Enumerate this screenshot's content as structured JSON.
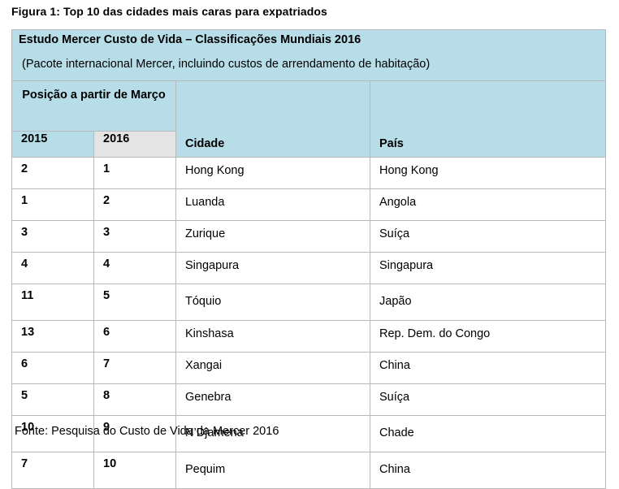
{
  "caption": "Figura 1: Top 10 das cidades mais caras para expatriados",
  "table": {
    "title": "Estudo Mercer Custo de Vida – Classificações Mundiais 2016",
    "subtitle": "(Pacote internacional Mercer, incluindo custos de arrendamento de habitação)",
    "position_header": "Posição a partir de Março",
    "columns": {
      "y2015": "2015",
      "y2016": "2016",
      "city": "Cidade",
      "country": "País"
    },
    "rows": [
      {
        "r2015": "2",
        "r2016": "1",
        "city": "Hong Kong",
        "country": "Hong Kong"
      },
      {
        "r2015": "1",
        "r2016": "2",
        "city": "Luanda",
        "country": "Angola"
      },
      {
        "r2015": "3",
        "r2016": "3",
        "city": "Zurique",
        "country": "Suíça"
      },
      {
        "r2015": "4",
        "r2016": "4",
        "city": "Singapura",
        "country": "Singapura"
      },
      {
        "r2015": "11",
        "r2016": "5",
        "city": "Tóquio",
        "country": "Japão"
      },
      {
        "r2015": "13",
        "r2016": "6",
        "city": "Kinshasa",
        "country": "Rep. Dem. do Congo"
      },
      {
        "r2015": "6",
        "r2016": "7",
        "city": "Xangai",
        "country": "China"
      },
      {
        "r2015": "5",
        "r2016": "8",
        "city": "Genebra",
        "country": "Suíça"
      },
      {
        "r2015": "10",
        "r2016": "9",
        "city": "N’Djamena",
        "country": "Chade"
      },
      {
        "r2015": "7",
        "r2016": "10",
        "city": "Pequim",
        "country": "China"
      }
    ]
  },
  "footer": "Fonte: Pesquisa do Custo de Vida da Mercer 2016"
}
